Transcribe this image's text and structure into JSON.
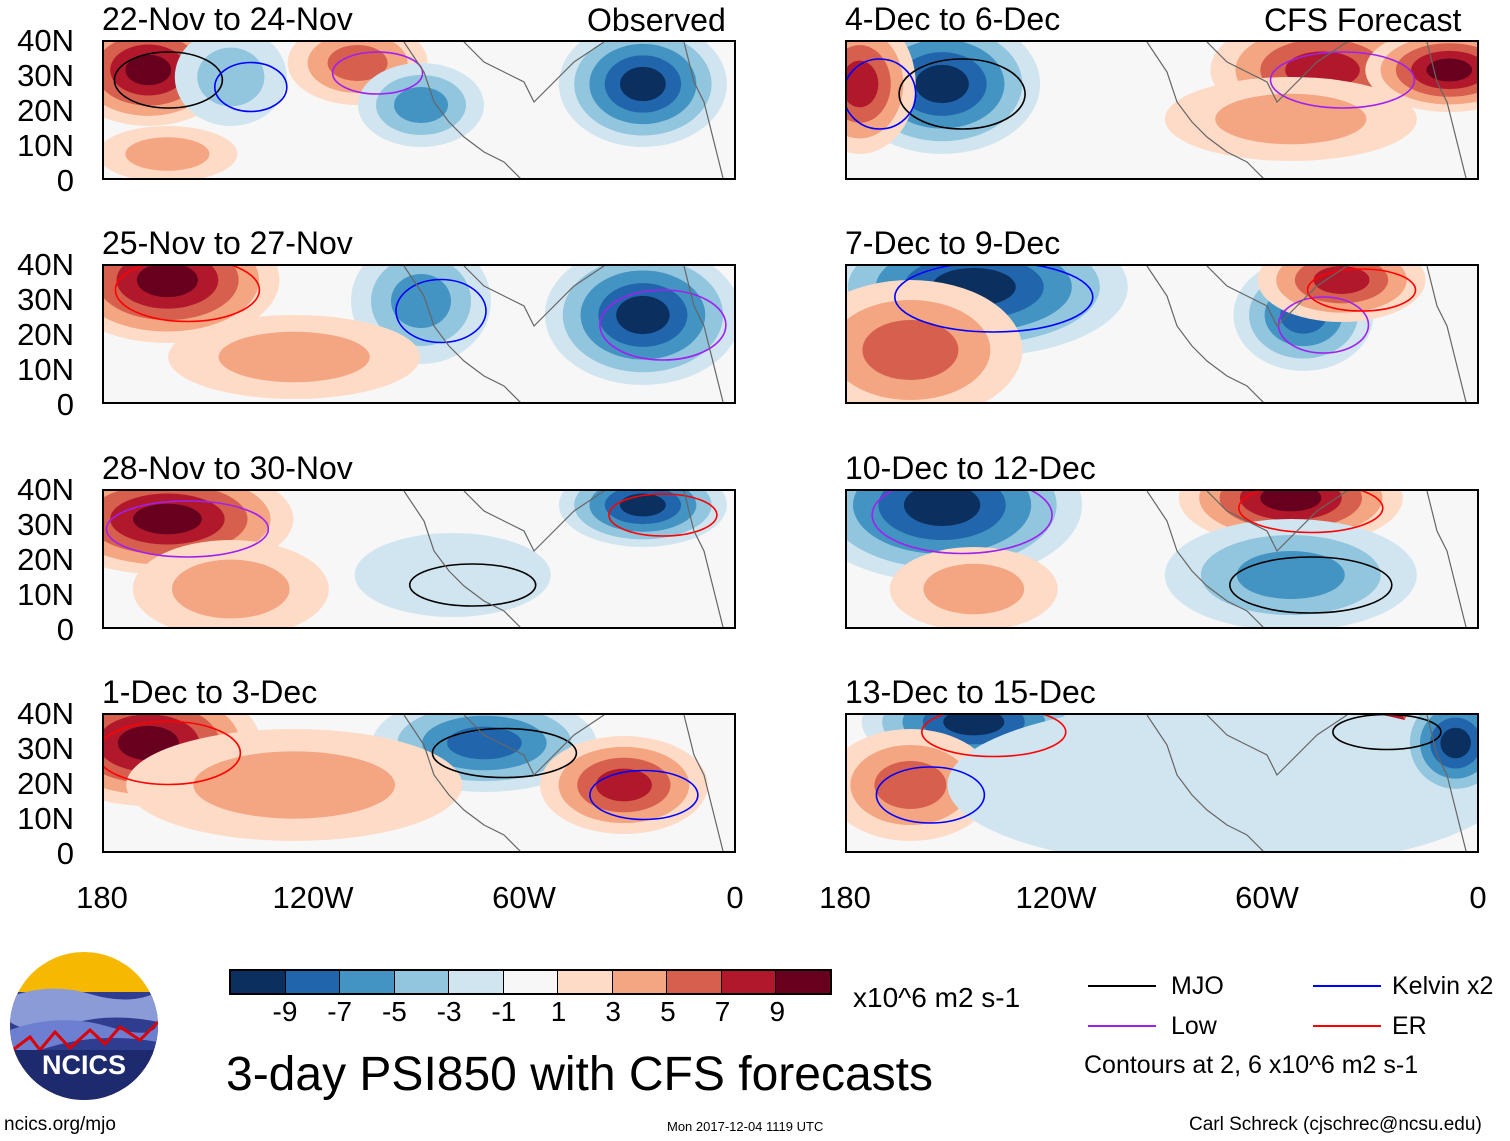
{
  "header": {
    "left_label": "Observed",
    "right_label": "CFS Forecast"
  },
  "panels_left": [
    {
      "title": "22-Nov to 24-Nov"
    },
    {
      "title": "25-Nov to 27-Nov"
    },
    {
      "title": "28-Nov to 30-Nov"
    },
    {
      "title": "1-Dec to 3-Dec"
    }
  ],
  "panels_right": [
    {
      "title": "4-Dec to 6-Dec"
    },
    {
      "title": "7-Dec to 9-Dec"
    },
    {
      "title": "10-Dec to 12-Dec"
    },
    {
      "title": "13-Dec to 15-Dec"
    }
  ],
  "lat_labels": [
    "40N",
    "30N",
    "20N",
    "10N",
    "0"
  ],
  "lon_labels": [
    "180",
    "120W",
    "60W",
    "0"
  ],
  "colorbar": {
    "colors": [
      "#0b305f",
      "#2166ac",
      "#4393c3",
      "#92c5de",
      "#d1e5f0",
      "#f7f7f7",
      "#fddbc7",
      "#f4a582",
      "#d6604d",
      "#b2182b",
      "#67001f"
    ],
    "ticks": [
      "-9",
      "-7",
      "-5",
      "-3",
      "-1",
      "1",
      "3",
      "5",
      "7",
      "9"
    ],
    "units": "x10^6 m2 s-1"
  },
  "legend": {
    "items": [
      {
        "label": "MJO",
        "color": "#000000"
      },
      {
        "label": "Kelvin x2",
        "color": "#0000ff"
      },
      {
        "label": "Low",
        "color": "#a020f0"
      },
      {
        "label": "ER",
        "color": "#ff0000"
      }
    ],
    "contours_note": "Contours at 2, 6 x10^6 m2 s-1"
  },
  "title": "3-day PSI850 with CFS forecasts",
  "logo_text": "NCICS",
  "footer": {
    "url": "ncics.org/mjo",
    "timestamp": "Mon 2017-12-04 1119 UTC",
    "credit": "Carl Schreck (cjschrec@ncsu.edu)"
  }
}
